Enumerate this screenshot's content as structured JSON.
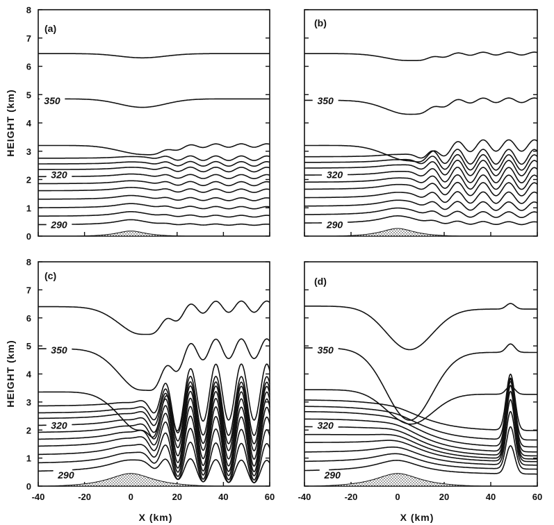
{
  "chart_data": [
    {
      "type": "contour",
      "panel_label": "(a)",
      "x_axis": {
        "label": "",
        "range": [
          -40,
          60
        ],
        "ticks": []
      },
      "y_axis": {
        "label": "HEIGHT (km)",
        "range": [
          0,
          8
        ],
        "ticks": [
          "0",
          "1",
          "2",
          "3",
          "4",
          "5",
          "6",
          "7",
          "8"
        ]
      },
      "contour_labels": [
        {
          "text": "350",
          "x": -34,
          "y": 4.78
        },
        {
          "text": "320",
          "x": -31,
          "y": 2.17
        },
        {
          "text": "290",
          "x": -31,
          "y": 0.4
        }
      ],
      "terrain": {
        "peak_x": 0,
        "peak_height_km": 0.2,
        "half_width_km": 8
      },
      "contours": [
        {
          "base": 0.4,
          "amp": 0.02,
          "stage": 1
        },
        {
          "base": 0.7,
          "amp": 0.03,
          "stage": 1
        },
        {
          "base": 1.0,
          "amp": 0.04,
          "stage": 1
        },
        {
          "base": 1.3,
          "amp": 0.05,
          "stage": 1
        },
        {
          "base": 1.6,
          "amp": 0.06,
          "stage": 1
        },
        {
          "base": 1.85,
          "amp": 0.07,
          "stage": 1
        },
        {
          "base": 2.1,
          "amp": 0.07,
          "stage": 1
        },
        {
          "base": 2.35,
          "amp": 0.08,
          "stage": 1
        },
        {
          "base": 2.55,
          "amp": 0.08,
          "stage": 1
        },
        {
          "base": 2.75,
          "amp": 0.08,
          "stage": 1
        },
        {
          "base": 3.2,
          "amp": 0.06,
          "stage": 1,
          "dip": 0.35
        },
        {
          "base": 4.85,
          "amp": 0.0,
          "stage": 1,
          "dip": 0.3
        },
        {
          "base": 6.45,
          "amp": 0.0,
          "stage": 1,
          "dip": 0.15
        }
      ]
    },
    {
      "type": "contour",
      "panel_label": "(b)",
      "x_axis": {
        "label": "",
        "range": [
          -40,
          60
        ],
        "ticks": []
      },
      "y_axis": {
        "label": "",
        "range": [
          0,
          8
        ],
        "ticks": []
      },
      "contour_labels": [
        {
          "text": "350",
          "x": -31,
          "y": 4.78
        },
        {
          "text": "320",
          "x": -27,
          "y": 2.17
        },
        {
          "text": "290",
          "x": -27,
          "y": 0.4
        }
      ],
      "terrain": {
        "peak_x": 0,
        "peak_height_km": 0.3,
        "half_width_km": 9
      },
      "contours": [
        {
          "base": 0.45,
          "amp": 0.05,
          "stage": 2
        },
        {
          "base": 0.75,
          "amp": 0.1,
          "stage": 2
        },
        {
          "base": 1.05,
          "amp": 0.15,
          "stage": 2
        },
        {
          "base": 1.35,
          "amp": 0.2,
          "stage": 2
        },
        {
          "base": 1.65,
          "amp": 0.23,
          "stage": 2
        },
        {
          "base": 1.9,
          "amp": 0.25,
          "stage": 2
        },
        {
          "base": 2.15,
          "amp": 0.27,
          "stage": 2
        },
        {
          "base": 2.4,
          "amp": 0.27,
          "stage": 2
        },
        {
          "base": 2.6,
          "amp": 0.27,
          "stage": 2
        },
        {
          "base": 2.8,
          "amp": 0.26,
          "stage": 2
        },
        {
          "base": 3.2,
          "amp": 0.2,
          "stage": 2,
          "dip": 0.6
        },
        {
          "base": 4.8,
          "amp": 0.08,
          "stage": 2,
          "dip": 0.5
        },
        {
          "base": 6.45,
          "amp": 0.05,
          "stage": 2,
          "dip": 0.25
        }
      ]
    },
    {
      "type": "contour",
      "panel_label": "(c)",
      "x_axis": {
        "label": "X (km)",
        "range": [
          -40,
          60
        ],
        "ticks": [
          "-40",
          "-20",
          "0",
          "20",
          "40",
          "60"
        ]
      },
      "y_axis": {
        "label": "HEIGHT (km)",
        "range": [
          0,
          8
        ],
        "ticks": [
          "0",
          "1",
          "2",
          "3",
          "4",
          "5",
          "6",
          "7",
          "8"
        ]
      },
      "contour_labels": [
        {
          "text": "350",
          "x": -31,
          "y": 4.85
        },
        {
          "text": "320",
          "x": -31,
          "y": 2.17
        },
        {
          "text": "290",
          "x": -28,
          "y": 0.4
        }
      ],
      "terrain": {
        "peak_x": 0,
        "peak_height_km": 0.5,
        "half_width_km": 12
      },
      "contours": [
        {
          "base": 0.5,
          "amp": 0.4,
          "stage": 3
        },
        {
          "base": 0.8,
          "amp": 0.7,
          "stage": 3
        },
        {
          "base": 1.1,
          "amp": 0.9,
          "stage": 3
        },
        {
          "base": 1.4,
          "amp": 1.05,
          "stage": 3
        },
        {
          "base": 1.65,
          "amp": 1.15,
          "stage": 3
        },
        {
          "base": 1.9,
          "amp": 1.2,
          "stage": 3
        },
        {
          "base": 2.15,
          "amp": 1.2,
          "stage": 3
        },
        {
          "base": 2.4,
          "amp": 1.15,
          "stage": 3
        },
        {
          "base": 2.6,
          "amp": 1.1,
          "stage": 3
        },
        {
          "base": 2.85,
          "amp": 1.05,
          "stage": 3
        },
        {
          "base": 3.35,
          "amp": 1.0,
          "stage": 3,
          "dip": 1.5
        },
        {
          "base": 4.9,
          "amp": 0.35,
          "stage": 3,
          "dip": 1.5
        },
        {
          "base": 6.4,
          "amp": 0.2,
          "stage": 3,
          "dip": 1.0
        }
      ]
    },
    {
      "type": "contour",
      "panel_label": "(d)",
      "x_axis": {
        "label": "X (km)",
        "range": [
          -40,
          60
        ],
        "ticks": [
          "-40",
          "-20",
          "0",
          "20",
          "40",
          "60"
        ]
      },
      "y_axis": {
        "label": "",
        "range": [
          0,
          8
        ],
        "ticks": []
      },
      "contour_labels": [
        {
          "text": "350",
          "x": -31,
          "y": 4.85
        },
        {
          "text": "320",
          "x": -31,
          "y": 2.17
        },
        {
          "text": "290",
          "x": -28,
          "y": 0.4
        }
      ],
      "terrain": {
        "peak_x": 0,
        "peak_height_km": 0.5,
        "half_width_km": 12
      },
      "contours": [
        {
          "base": 0.5,
          "amp": 1.0,
          "stage": 4
        },
        {
          "base": 0.8,
          "amp": 1.5,
          "stage": 4
        },
        {
          "base": 1.1,
          "amp": 1.9,
          "stage": 4
        },
        {
          "base": 1.4,
          "amp": 2.2,
          "stage": 4
        },
        {
          "base": 1.65,
          "amp": 2.4,
          "stage": 4
        },
        {
          "base": 1.9,
          "amp": 2.5,
          "stage": 4
        },
        {
          "base": 2.15,
          "amp": 2.5,
          "stage": 4
        },
        {
          "base": 2.4,
          "amp": 2.4,
          "stage": 4
        },
        {
          "base": 2.6,
          "amp": 2.2,
          "stage": 4
        },
        {
          "base": 2.85,
          "amp": 2.0,
          "stage": 4
        },
        {
          "base": 3.4,
          "amp": 0.3,
          "stage": 4,
          "dip": 1.2
        },
        {
          "base": 4.9,
          "amp": 0.3,
          "stage": 4,
          "dip": 2.5
        },
        {
          "base": 6.4,
          "amp": 0.2,
          "stage": 4,
          "dip": 1.5
        }
      ]
    }
  ]
}
